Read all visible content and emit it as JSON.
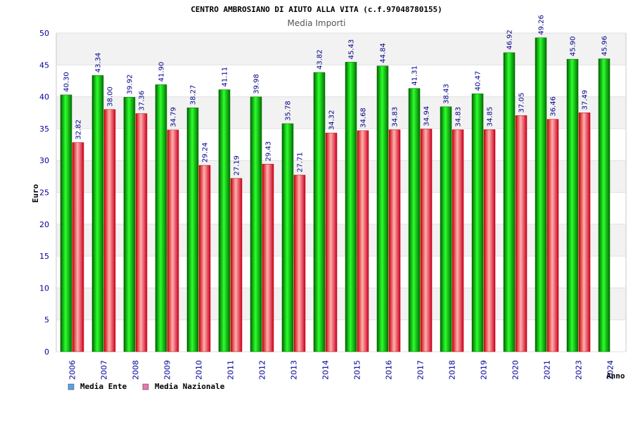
{
  "chart_data": {
    "type": "bar",
    "title": "CENTRO AMBROSIANO DI AIUTO ALLA VITA (c.f.97048780155)",
    "subtitle": "Media Importi",
    "ylabel": "Euro",
    "xlabel": "Anno",
    "ylim": [
      0,
      50
    ],
    "yticks": [
      "0",
      "5",
      "10",
      "15",
      "20",
      "25",
      "30",
      "35",
      "40",
      "45",
      "50"
    ],
    "grid": true,
    "categories": [
      "2006",
      "2007",
      "2008",
      "2009",
      "2010",
      "2011",
      "2012",
      "2013",
      "2014",
      "2015",
      "2016",
      "2017",
      "2018",
      "2019",
      "2020",
      "2021",
      "2023",
      "2024"
    ],
    "series": [
      {
        "name": "Media Ente",
        "color": "#00b400",
        "legend_color": "#5aa0e6",
        "values": [
          40.3,
          43.34,
          39.92,
          41.9,
          38.27,
          41.11,
          39.98,
          35.78,
          43.82,
          45.43,
          44.84,
          41.31,
          38.43,
          40.47,
          46.92,
          49.26,
          45.9,
          45.96
        ],
        "labels": [
          "40.30",
          "43.34",
          "39.92",
          "41.90",
          "38.27",
          "41.11",
          "39.98",
          "35.78",
          "43.82",
          "45.43",
          "44.84",
          "41.31",
          "38.43",
          "40.47",
          "46.92",
          "49.26",
          "45.90",
          "45.96"
        ]
      },
      {
        "name": "Media Nazionale",
        "color": "#e6003c",
        "legend_color": "#e678b4",
        "values": [
          32.82,
          38.0,
          37.36,
          34.79,
          29.24,
          27.19,
          29.43,
          27.71,
          34.32,
          34.68,
          34.83,
          34.94,
          34.83,
          34.85,
          37.05,
          36.46,
          37.49,
          null
        ],
        "labels": [
          "32.82",
          "38.00",
          "37.36",
          "34.79",
          "29.24",
          "27.19",
          "29.43",
          "27.71",
          "34.32",
          "34.68",
          "34.83",
          "34.94",
          "34.83",
          "34.85",
          "37.05",
          "36.46",
          "37.49",
          ""
        ]
      }
    ],
    "legend_position": "bottom-left"
  }
}
